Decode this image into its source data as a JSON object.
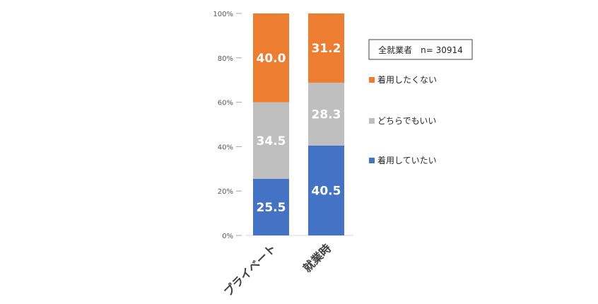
{
  "chart_data": {
    "type": "bar",
    "stacked": true,
    "categories": [
      "プライベート",
      "就業時"
    ],
    "series": [
      {
        "name": "着用していたい",
        "values": [
          25.5,
          40.5
        ],
        "color": "#4472C4"
      },
      {
        "name": "どちらでもいい",
        "values": [
          34.5,
          28.3
        ],
        "color": "#BFBFBF"
      },
      {
        "name": "着用したくない",
        "values": [
          40.0,
          31.2
        ],
        "color": "#ED7D31"
      }
    ],
    "yticks": [
      "0%",
      "20%",
      "40%",
      "60%",
      "80%",
      "100%"
    ],
    "ylim": [
      0,
      100
    ],
    "legend_placement": "right",
    "note": "全就業者　n= 30914",
    "grid": false
  }
}
